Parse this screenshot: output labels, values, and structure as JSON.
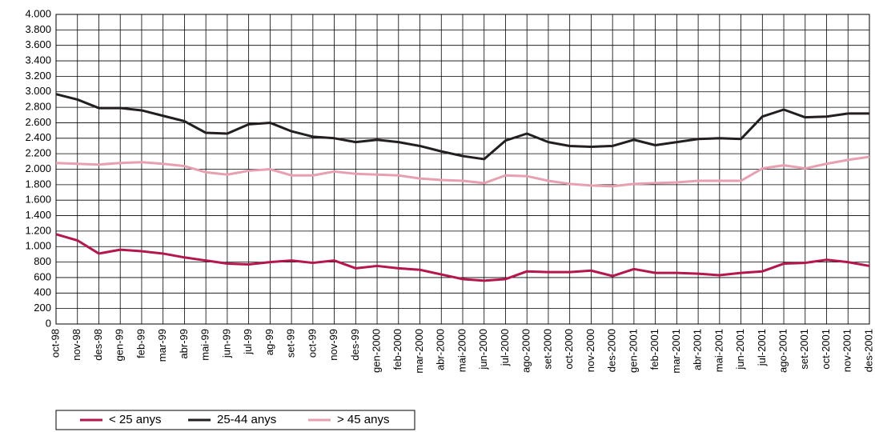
{
  "chart_data": {
    "type": "line",
    "categories": [
      "oct-98",
      "nov-98",
      "des-98",
      "gen-99",
      "feb-99",
      "mar-99",
      "abr-99",
      "mai-99",
      "jun-99",
      "jul-99",
      "ag-99",
      "set-99",
      "oct-99",
      "nov-99",
      "des-99",
      "gen-2000",
      "feb-2000",
      "mar-2000",
      "abr-2000",
      "mai-2000",
      "jun-2000",
      "jul-2000",
      "ago-2000",
      "set-2000",
      "oct-2000",
      "nov-2000",
      "des-2000",
      "gen-2001",
      "feb-2001",
      "mar-2001",
      "abr-2001",
      "mai-2001",
      "jun-2001",
      "jul-2001",
      "ago-2001",
      "set-2001",
      "oct-2001",
      "nov-2001",
      "des-2001"
    ],
    "series": [
      {
        "name": "< 25 anys",
        "color": "#b5164b",
        "values": [
          1160,
          1080,
          910,
          960,
          940,
          910,
          860,
          820,
          780,
          770,
          800,
          820,
          790,
          820,
          720,
          750,
          720,
          700,
          640,
          580,
          560,
          580,
          680,
          670,
          670,
          690,
          620,
          710,
          660,
          660,
          650,
          630,
          660,
          680,
          780,
          790,
          830,
          800,
          750
        ]
      },
      {
        "name": "25-44 anys",
        "color": "#231f20",
        "values": [
          2970,
          2900,
          2790,
          2790,
          2760,
          2690,
          2620,
          2470,
          2460,
          2580,
          2600,
          2490,
          2420,
          2400,
          2350,
          2380,
          2350,
          2300,
          2230,
          2170,
          2130,
          2370,
          2460,
          2350,
          2300,
          2290,
          2300,
          2380,
          2310,
          2350,
          2390,
          2400,
          2390,
          2680,
          2770,
          2670,
          2680,
          2720,
          2720
        ]
      },
      {
        "name": "> 45 anys",
        "color": "#e8a0b0",
        "values": [
          2080,
          2070,
          2060,
          2080,
          2090,
          2070,
          2040,
          1960,
          1930,
          1980,
          2000,
          1920,
          1920,
          1970,
          1940,
          1930,
          1920,
          1880,
          1860,
          1850,
          1820,
          1920,
          1910,
          1850,
          1810,
          1790,
          1780,
          1810,
          1820,
          1830,
          1850,
          1850,
          1850,
          2010,
          2050,
          2010,
          2070,
          2120,
          2160
        ]
      }
    ],
    "ylim": [
      0,
      4000
    ],
    "yticks": [
      0,
      200,
      400,
      600,
      800,
      {
        "value": 1000,
        "label": "1.000"
      },
      {
        "value": 1200,
        "label": "1.200"
      },
      {
        "value": 1400,
        "label": "1.400"
      },
      {
        "value": 1600,
        "label": "1.600"
      },
      {
        "value": 1800,
        "label": "1.800"
      },
      {
        "value": 2000,
        "label": "2.000"
      },
      {
        "value": 2200,
        "label": "2.200"
      },
      {
        "value": 2400,
        "label": "2.400"
      },
      {
        "value": 2600,
        "label": "2.600"
      },
      {
        "value": 2800,
        "label": "2.800"
      },
      {
        "value": 3000,
        "label": "3.000"
      },
      {
        "value": 3200,
        "label": "3.200"
      },
      {
        "value": 3400,
        "label": "3.400"
      },
      {
        "value": 3600,
        "label": "3.600"
      },
      {
        "value": 3800,
        "label": "3.800"
      },
      {
        "value": 4000,
        "label": "4.000"
      }
    ],
    "grid": true
  }
}
